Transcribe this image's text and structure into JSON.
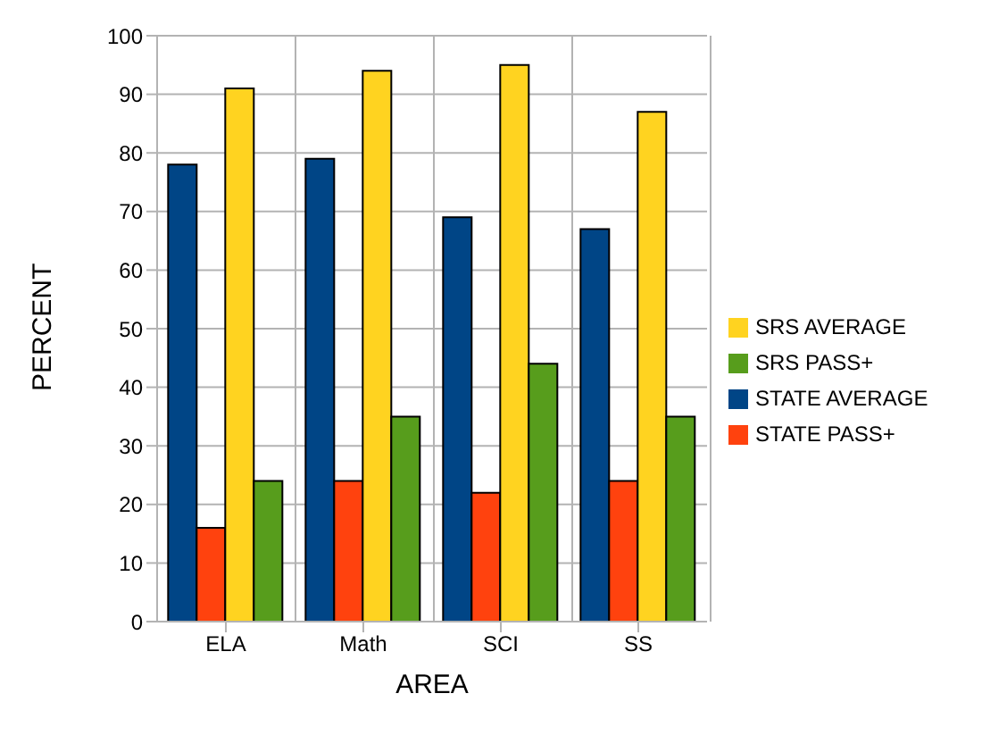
{
  "chart_data": {
    "type": "bar",
    "xlabel": "AREA",
    "ylabel": "PERCENT",
    "categories": [
      "ELA",
      "Math",
      "SCI",
      "SS"
    ],
    "series": [
      {
        "name": "STATE AVERAGE",
        "color": "#004586",
        "values": [
          78,
          79,
          69,
          67
        ]
      },
      {
        "name": "STATE PASS+",
        "color": "#ff420e",
        "values": [
          16,
          24,
          22,
          24
        ]
      },
      {
        "name": "SRS AVERAGE",
        "color": "#ffd320",
        "values": [
          91,
          94,
          95,
          87
        ]
      },
      {
        "name": "SRS PASS+",
        "color": "#579d1c",
        "values": [
          24,
          35,
          44,
          35
        ]
      }
    ],
    "ylim": [
      0,
      100
    ],
    "yticks": [
      0,
      10,
      20,
      30,
      40,
      50,
      60,
      70,
      80,
      90,
      100
    ],
    "grid": true,
    "legend": "right"
  }
}
